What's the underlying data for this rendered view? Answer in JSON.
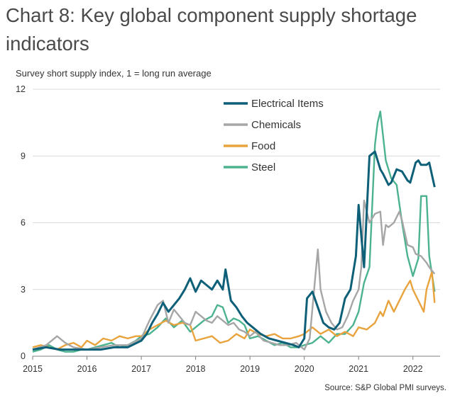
{
  "title": "Chart 8: Key global component supply shortage indicators",
  "source": "Source: S&P Global PMI surveys.",
  "chart_data": {
    "type": "line",
    "ylabel": "Survey short supply index, 1 = long run average",
    "ylim": [
      0,
      12
    ],
    "yticks": [
      "0",
      "3",
      "6",
      "9",
      "12"
    ],
    "xlim": [
      2015.0,
      2022.5
    ],
    "xticks": [
      "2015",
      "2016",
      "2017",
      "2018",
      "2019",
      "2020",
      "2021",
      "2022"
    ],
    "legend_position": "top-center",
    "series": [
      {
        "name": "Electrical Items",
        "color": "#0e5f78",
        "x": [
          2015.0,
          2015.25,
          2015.5,
          2015.75,
          2016.0,
          2016.25,
          2016.5,
          2016.75,
          2017.0,
          2017.1,
          2017.2,
          2017.3,
          2017.4,
          2017.5,
          2017.6,
          2017.7,
          2017.8,
          2017.9,
          2018.0,
          2018.1,
          2018.2,
          2018.3,
          2018.4,
          2018.5,
          2018.55,
          2018.65,
          2018.75,
          2018.85,
          2018.95,
          2019.05,
          2019.2,
          2019.35,
          2019.5,
          2019.65,
          2019.8,
          2019.9,
          2020.0,
          2020.05,
          2020.15,
          2020.25,
          2020.35,
          2020.45,
          2020.55,
          2020.65,
          2020.75,
          2020.85,
          2020.95,
          2021.0,
          2021.1,
          2021.2,
          2021.3,
          2021.4,
          2021.45,
          2021.55,
          2021.6,
          2021.7,
          2021.8,
          2021.9,
          2021.95,
          2022.05,
          2022.1,
          2022.15,
          2022.25,
          2022.3,
          2022.4
        ],
        "values": [
          0.3,
          0.4,
          0.3,
          0.3,
          0.3,
          0.3,
          0.4,
          0.4,
          0.7,
          1.0,
          1.5,
          1.9,
          2.4,
          2.0,
          2.3,
          2.6,
          3.0,
          3.5,
          2.9,
          3.4,
          3.2,
          3.0,
          3.4,
          3.0,
          3.9,
          2.5,
          2.2,
          1.8,
          1.5,
          1.3,
          1.0,
          0.8,
          0.7,
          0.6,
          0.5,
          0.4,
          0.8,
          2.6,
          2.9,
          2.2,
          1.5,
          1.3,
          1.2,
          1.5,
          2.6,
          3.0,
          4.5,
          6.8,
          4.0,
          9.0,
          9.2,
          8.4,
          8.2,
          7.7,
          7.8,
          8.4,
          8.3,
          7.9,
          7.8,
          8.7,
          8.8,
          8.6,
          8.6,
          8.7,
          7.6
        ]
      },
      {
        "name": "Chemicals",
        "color": "#a6a6a6",
        "x": [
          2015.0,
          2015.25,
          2015.45,
          2015.6,
          2015.75,
          2016.0,
          2016.25,
          2016.5,
          2016.75,
          2017.0,
          2017.15,
          2017.3,
          2017.4,
          2017.5,
          2017.6,
          2017.7,
          2017.8,
          2017.9,
          2018.0,
          2018.1,
          2018.2,
          2018.3,
          2018.4,
          2018.5,
          2018.6,
          2018.7,
          2018.8,
          2018.9,
          2019.0,
          2019.1,
          2019.25,
          2019.4,
          2019.55,
          2019.7,
          2019.85,
          2020.0,
          2020.1,
          2020.2,
          2020.25,
          2020.3,
          2020.4,
          2020.5,
          2020.6,
          2020.7,
          2020.8,
          2020.9,
          2021.0,
          2021.05,
          2021.1,
          2021.2,
          2021.3,
          2021.4,
          2021.45,
          2021.5,
          2021.55,
          2021.65,
          2021.75,
          2021.8,
          2021.9,
          2022.0,
          2022.05,
          2022.15,
          2022.25,
          2022.3,
          2022.4
        ],
        "values": [
          0.3,
          0.5,
          0.9,
          0.6,
          0.4,
          0.3,
          0.4,
          0.5,
          0.5,
          0.8,
          1.6,
          2.3,
          2.5,
          1.5,
          2.1,
          1.8,
          1.5,
          1.4,
          2.0,
          1.8,
          1.6,
          1.5,
          1.8,
          1.6,
          1.4,
          1.5,
          1.2,
          1.1,
          0.9,
          1.1,
          0.7,
          0.6,
          0.5,
          0.5,
          0.6,
          0.3,
          0.8,
          3.5,
          4.8,
          3.0,
          2.0,
          1.5,
          1.2,
          1.3,
          1.8,
          2.5,
          3.0,
          4.0,
          7.0,
          6.0,
          6.4,
          6.5,
          5.0,
          5.9,
          5.8,
          6.0,
          6.5,
          6.1,
          5.0,
          4.9,
          4.6,
          4.5,
          4.2,
          4.0,
          3.7
        ]
      },
      {
        "name": "Food",
        "color": "#e8a33d",
        "x": [
          2015.0,
          2015.15,
          2015.3,
          2015.45,
          2015.6,
          2015.75,
          2015.9,
          2016.0,
          2016.15,
          2016.3,
          2016.45,
          2016.6,
          2016.75,
          2016.9,
          2017.0,
          2017.15,
          2017.3,
          2017.45,
          2017.6,
          2017.75,
          2017.9,
          2018.0,
          2018.15,
          2018.3,
          2018.45,
          2018.6,
          2018.75,
          2018.9,
          2019.0,
          2019.15,
          2019.3,
          2019.45,
          2019.6,
          2019.75,
          2019.9,
          2020.0,
          2020.15,
          2020.3,
          2020.45,
          2020.6,
          2020.75,
          2020.9,
          2021.0,
          2021.15,
          2021.3,
          2021.4,
          2021.45,
          2021.55,
          2021.65,
          2021.75,
          2021.85,
          2021.95,
          2022.0,
          2022.1,
          2022.2,
          2022.25,
          2022.35,
          2022.4
        ],
        "values": [
          0.4,
          0.5,
          0.4,
          0.3,
          0.5,
          0.6,
          0.4,
          0.7,
          0.5,
          0.8,
          0.7,
          0.9,
          0.8,
          0.9,
          0.9,
          1.2,
          1.4,
          1.6,
          1.4,
          1.5,
          1.4,
          0.7,
          0.8,
          0.9,
          0.6,
          0.7,
          1.0,
          0.8,
          1.2,
          1.0,
          0.9,
          1.0,
          0.8,
          0.8,
          0.9,
          1.0,
          1.3,
          1.0,
          1.2,
          0.9,
          1.1,
          0.9,
          1.3,
          1.2,
          1.5,
          2.0,
          1.8,
          2.5,
          2.0,
          2.5,
          3.0,
          3.4,
          3.0,
          2.5,
          2.0,
          3.0,
          3.8,
          2.4
        ]
      },
      {
        "name": "Steel",
        "color": "#4db38f",
        "x": [
          2015.0,
          2015.15,
          2015.3,
          2015.45,
          2015.6,
          2015.75,
          2015.9,
          2016.0,
          2016.15,
          2016.3,
          2016.45,
          2016.6,
          2016.75,
          2016.9,
          2017.0,
          2017.15,
          2017.3,
          2017.45,
          2017.6,
          2017.75,
          2017.9,
          2018.0,
          2018.15,
          2018.3,
          2018.4,
          2018.5,
          2018.6,
          2018.7,
          2018.8,
          2018.9,
          2019.0,
          2019.15,
          2019.3,
          2019.45,
          2019.6,
          2019.75,
          2019.9,
          2020.0,
          2020.15,
          2020.3,
          2020.45,
          2020.6,
          2020.75,
          2020.9,
          2021.0,
          2021.1,
          2021.2,
          2021.3,
          2021.35,
          2021.4,
          2021.5,
          2021.6,
          2021.7,
          2021.8,
          2021.9,
          2022.0,
          2022.1,
          2022.15,
          2022.25,
          2022.3,
          2022.4
        ],
        "values": [
          0.2,
          0.3,
          0.5,
          0.3,
          0.2,
          0.2,
          0.3,
          0.3,
          0.4,
          0.5,
          0.6,
          0.4,
          0.5,
          0.7,
          0.9,
          1.0,
          1.3,
          1.7,
          1.3,
          1.6,
          1.1,
          1.3,
          1.6,
          1.8,
          2.3,
          2.2,
          1.5,
          1.7,
          1.6,
          1.4,
          0.8,
          0.9,
          0.7,
          0.5,
          0.6,
          0.4,
          0.4,
          0.5,
          0.6,
          0.9,
          0.6,
          1.0,
          1.0,
          1.4,
          2.0,
          3.3,
          4.0,
          9.5,
          10.5,
          11.0,
          8.8,
          8.0,
          7.7,
          6.0,
          4.5,
          3.6,
          4.4,
          7.2,
          7.2,
          4.5,
          2.9
        ]
      }
    ]
  }
}
